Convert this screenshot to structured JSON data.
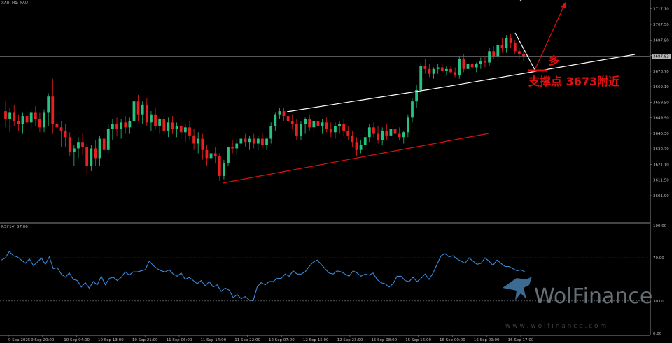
{
  "chart_header": {
    "symbol_info": "XAU, H1:  XAU",
    "rsi_info": "RSI(14) 57.06"
  },
  "chart_data": [
    {
      "type": "candlestick",
      "symbol": "XAU",
      "timeframe": "H1",
      "y_ticks": [
        "3717.10",
        "3707.50",
        "3697.90",
        "3688.30",
        "3678.70",
        "3669.10",
        "3659.50",
        "3649.90",
        "3640.30",
        "3630.70",
        "3621.10",
        "3611.50",
        "3601.90"
      ],
      "ylim": [
        3595,
        3720
      ],
      "current_price_label": "3687.83",
      "current_price": 3687.8,
      "x_ticks": [
        "9 Sep 2025",
        "9 Sep 20:00",
        "10 Sep 04:00",
        "10 Sep 13:00",
        "10 Sep 21:00",
        "11 Sep 06:00",
        "11 Sep 14:00",
        "11 Sep 22:00",
        "12 Sep 07:00",
        "12 Sep 15:00",
        "12 Sep 23:00",
        "15 Sep 08:00",
        "15 Sep 16:00",
        "16 Sep 00:00",
        "16 Sep 09:00",
        "16 Sep 17:00"
      ],
      "bull_color": "#26c281",
      "bear_color": "#e8201f",
      "candles": [
        {
          "o": 3654,
          "h": 3660,
          "l": 3644,
          "c": 3649
        },
        {
          "o": 3649,
          "h": 3656,
          "l": 3641,
          "c": 3653
        },
        {
          "o": 3653,
          "h": 3658,
          "l": 3645,
          "c": 3648
        },
        {
          "o": 3648,
          "h": 3652,
          "l": 3642,
          "c": 3646
        },
        {
          "o": 3646,
          "h": 3653,
          "l": 3640,
          "c": 3651
        },
        {
          "o": 3651,
          "h": 3656,
          "l": 3644,
          "c": 3647
        },
        {
          "o": 3647,
          "h": 3655,
          "l": 3643,
          "c": 3653
        },
        {
          "o": 3653,
          "h": 3657,
          "l": 3645,
          "c": 3649
        },
        {
          "o": 3649,
          "h": 3653,
          "l": 3641,
          "c": 3644
        },
        {
          "o": 3644,
          "h": 3655,
          "l": 3641,
          "c": 3653
        },
        {
          "o": 3653,
          "h": 3665,
          "l": 3645,
          "c": 3663
        },
        {
          "o": 3663,
          "h": 3674,
          "l": 3640,
          "c": 3646
        },
        {
          "o": 3646,
          "h": 3652,
          "l": 3630,
          "c": 3644
        },
        {
          "o": 3644,
          "h": 3648,
          "l": 3632,
          "c": 3642
        },
        {
          "o": 3642,
          "h": 3646,
          "l": 3632,
          "c": 3638
        },
        {
          "o": 3638,
          "h": 3641,
          "l": 3626,
          "c": 3629
        },
        {
          "o": 3629,
          "h": 3633,
          "l": 3620,
          "c": 3631
        },
        {
          "o": 3631,
          "h": 3638,
          "l": 3625,
          "c": 3635
        },
        {
          "o": 3635,
          "h": 3640,
          "l": 3627,
          "c": 3632
        },
        {
          "o": 3632,
          "h": 3634,
          "l": 3615,
          "c": 3620
        },
        {
          "o": 3620,
          "h": 3633,
          "l": 3617,
          "c": 3631
        },
        {
          "o": 3631,
          "h": 3636,
          "l": 3620,
          "c": 3625
        },
        {
          "o": 3625,
          "h": 3639,
          "l": 3620,
          "c": 3637
        },
        {
          "o": 3637,
          "h": 3643,
          "l": 3627,
          "c": 3630
        },
        {
          "o": 3630,
          "h": 3646,
          "l": 3628,
          "c": 3643
        },
        {
          "o": 3643,
          "h": 3649,
          "l": 3636,
          "c": 3646
        },
        {
          "o": 3646,
          "h": 3650,
          "l": 3639,
          "c": 3643
        },
        {
          "o": 3643,
          "h": 3649,
          "l": 3637,
          "c": 3647
        },
        {
          "o": 3647,
          "h": 3651,
          "l": 3640,
          "c": 3644
        },
        {
          "o": 3644,
          "h": 3650,
          "l": 3640,
          "c": 3648
        },
        {
          "o": 3648,
          "h": 3662,
          "l": 3645,
          "c": 3660
        },
        {
          "o": 3660,
          "h": 3664,
          "l": 3648,
          "c": 3652
        },
        {
          "o": 3652,
          "h": 3660,
          "l": 3646,
          "c": 3658
        },
        {
          "o": 3658,
          "h": 3662,
          "l": 3645,
          "c": 3647
        },
        {
          "o": 3647,
          "h": 3654,
          "l": 3642,
          "c": 3652
        },
        {
          "o": 3652,
          "h": 3656,
          "l": 3643,
          "c": 3645
        },
        {
          "o": 3645,
          "h": 3650,
          "l": 3640,
          "c": 3649
        },
        {
          "o": 3649,
          "h": 3652,
          "l": 3639,
          "c": 3642
        },
        {
          "o": 3642,
          "h": 3650,
          "l": 3638,
          "c": 3647
        },
        {
          "o": 3647,
          "h": 3651,
          "l": 3640,
          "c": 3643
        },
        {
          "o": 3643,
          "h": 3647,
          "l": 3638,
          "c": 3645
        },
        {
          "o": 3645,
          "h": 3648,
          "l": 3637,
          "c": 3641
        },
        {
          "o": 3641,
          "h": 3646,
          "l": 3635,
          "c": 3644
        },
        {
          "o": 3644,
          "h": 3648,
          "l": 3636,
          "c": 3639
        },
        {
          "o": 3639,
          "h": 3643,
          "l": 3630,
          "c": 3634
        },
        {
          "o": 3634,
          "h": 3641,
          "l": 3628,
          "c": 3637
        },
        {
          "o": 3637,
          "h": 3640,
          "l": 3624,
          "c": 3630
        },
        {
          "o": 3630,
          "h": 3633,
          "l": 3620,
          "c": 3625
        },
        {
          "o": 3625,
          "h": 3632,
          "l": 3619,
          "c": 3628
        },
        {
          "o": 3628,
          "h": 3632,
          "l": 3622,
          "c": 3626
        },
        {
          "o": 3626,
          "h": 3628,
          "l": 3611,
          "c": 3614
        },
        {
          "o": 3614,
          "h": 3624,
          "l": 3612,
          "c": 3622
        },
        {
          "o": 3622,
          "h": 3632,
          "l": 3620,
          "c": 3632
        },
        {
          "o": 3632,
          "h": 3636,
          "l": 3628,
          "c": 3631
        },
        {
          "o": 3631,
          "h": 3637,
          "l": 3627,
          "c": 3634
        },
        {
          "o": 3634,
          "h": 3638,
          "l": 3630,
          "c": 3637
        },
        {
          "o": 3637,
          "h": 3640,
          "l": 3632,
          "c": 3635
        },
        {
          "o": 3635,
          "h": 3639,
          "l": 3630,
          "c": 3637
        },
        {
          "o": 3637,
          "h": 3640,
          "l": 3631,
          "c": 3634
        },
        {
          "o": 3634,
          "h": 3639,
          "l": 3630,
          "c": 3637
        },
        {
          "o": 3637,
          "h": 3640,
          "l": 3632,
          "c": 3633
        },
        {
          "o": 3633,
          "h": 3638,
          "l": 3630,
          "c": 3637
        },
        {
          "o": 3637,
          "h": 3647,
          "l": 3634,
          "c": 3645
        },
        {
          "o": 3645,
          "h": 3653,
          "l": 3642,
          "c": 3652
        },
        {
          "o": 3652,
          "h": 3656,
          "l": 3649,
          "c": 3654
        },
        {
          "o": 3654,
          "h": 3656,
          "l": 3648,
          "c": 3651
        },
        {
          "o": 3651,
          "h": 3654,
          "l": 3646,
          "c": 3648
        },
        {
          "o": 3648,
          "h": 3652,
          "l": 3643,
          "c": 3646
        },
        {
          "o": 3646,
          "h": 3649,
          "l": 3636,
          "c": 3639
        },
        {
          "o": 3639,
          "h": 3648,
          "l": 3636,
          "c": 3646
        },
        {
          "o": 3646,
          "h": 3650,
          "l": 3640,
          "c": 3649
        },
        {
          "o": 3649,
          "h": 3652,
          "l": 3642,
          "c": 3644
        },
        {
          "o": 3644,
          "h": 3649,
          "l": 3640,
          "c": 3648
        },
        {
          "o": 3648,
          "h": 3651,
          "l": 3643,
          "c": 3645
        },
        {
          "o": 3645,
          "h": 3649,
          "l": 3640,
          "c": 3647
        },
        {
          "o": 3647,
          "h": 3650,
          "l": 3641,
          "c": 3643
        },
        {
          "o": 3643,
          "h": 3647,
          "l": 3638,
          "c": 3641
        },
        {
          "o": 3641,
          "h": 3647,
          "l": 3637,
          "c": 3645
        },
        {
          "o": 3645,
          "h": 3648,
          "l": 3640,
          "c": 3646
        },
        {
          "o": 3646,
          "h": 3649,
          "l": 3639,
          "c": 3642
        },
        {
          "o": 3642,
          "h": 3645,
          "l": 3636,
          "c": 3639
        },
        {
          "o": 3639,
          "h": 3642,
          "l": 3632,
          "c": 3635
        },
        {
          "o": 3635,
          "h": 3638,
          "l": 3626,
          "c": 3630
        },
        {
          "o": 3630,
          "h": 3636,
          "l": 3628,
          "c": 3633
        },
        {
          "o": 3633,
          "h": 3640,
          "l": 3630,
          "c": 3638
        },
        {
          "o": 3638,
          "h": 3646,
          "l": 3635,
          "c": 3644
        },
        {
          "o": 3644,
          "h": 3647,
          "l": 3638,
          "c": 3640
        },
        {
          "o": 3640,
          "h": 3645,
          "l": 3634,
          "c": 3636
        },
        {
          "o": 3636,
          "h": 3644,
          "l": 3633,
          "c": 3642
        },
        {
          "o": 3642,
          "h": 3646,
          "l": 3636,
          "c": 3639
        },
        {
          "o": 3639,
          "h": 3645,
          "l": 3636,
          "c": 3643
        },
        {
          "o": 3643,
          "h": 3646,
          "l": 3638,
          "c": 3640
        },
        {
          "o": 3640,
          "h": 3644,
          "l": 3636,
          "c": 3638
        },
        {
          "o": 3638,
          "h": 3642,
          "l": 3634,
          "c": 3641
        },
        {
          "o": 3641,
          "h": 3652,
          "l": 3638,
          "c": 3650
        },
        {
          "o": 3650,
          "h": 3662,
          "l": 3647,
          "c": 3660
        },
        {
          "o": 3660,
          "h": 3670,
          "l": 3656,
          "c": 3667
        },
        {
          "o": 3667,
          "h": 3684,
          "l": 3664,
          "c": 3682
        },
        {
          "o": 3682,
          "h": 3686,
          "l": 3677,
          "c": 3680
        },
        {
          "o": 3680,
          "h": 3683,
          "l": 3675,
          "c": 3677
        },
        {
          "o": 3677,
          "h": 3681,
          "l": 3674,
          "c": 3680
        },
        {
          "o": 3680,
          "h": 3683,
          "l": 3677,
          "c": 3681
        },
        {
          "o": 3681,
          "h": 3683,
          "l": 3678,
          "c": 3679
        },
        {
          "o": 3679,
          "h": 3682,
          "l": 3676,
          "c": 3680
        },
        {
          "o": 3680,
          "h": 3682,
          "l": 3677,
          "c": 3678
        },
        {
          "o": 3678,
          "h": 3681,
          "l": 3675,
          "c": 3676
        },
        {
          "o": 3676,
          "h": 3688,
          "l": 3674,
          "c": 3686
        },
        {
          "o": 3686,
          "h": 3689,
          "l": 3678,
          "c": 3680
        },
        {
          "o": 3680,
          "h": 3684,
          "l": 3676,
          "c": 3683
        },
        {
          "o": 3683,
          "h": 3686,
          "l": 3679,
          "c": 3681
        },
        {
          "o": 3681,
          "h": 3684,
          "l": 3678,
          "c": 3683
        },
        {
          "o": 3683,
          "h": 3687,
          "l": 3680,
          "c": 3685
        },
        {
          "o": 3685,
          "h": 3688,
          "l": 3681,
          "c": 3684
        },
        {
          "o": 3684,
          "h": 3693,
          "l": 3682,
          "c": 3691
        },
        {
          "o": 3691,
          "h": 3694,
          "l": 3686,
          "c": 3688
        },
        {
          "o": 3688,
          "h": 3697,
          "l": 3685,
          "c": 3695
        },
        {
          "o": 3695,
          "h": 3699,
          "l": 3690,
          "c": 3693
        },
        {
          "o": 3693,
          "h": 3701,
          "l": 3690,
          "c": 3699
        },
        {
          "o": 3699,
          "h": 3702,
          "l": 3693,
          "c": 3696
        },
        {
          "o": 3696,
          "h": 3698,
          "l": 3689,
          "c": 3691
        },
        {
          "o": 3691,
          "h": 3693,
          "l": 3686,
          "c": 3689
        },
        {
          "o": 3689,
          "h": 3691,
          "l": 3685,
          "c": 3688
        }
      ],
      "annotations": {
        "support_text": "支撑点 3673附近",
        "bias_text": "多",
        "support_price_label": "3673",
        "support_price": 3673
      }
    },
    {
      "type": "line",
      "indicator": "RSI",
      "period": 14,
      "current": 57.06,
      "y_ticks": [
        "100.00",
        "70.00",
        "30.00",
        "0.00"
      ],
      "levels": [
        70,
        30
      ],
      "ylim": [
        0,
        100
      ],
      "line_color": "#3b8ad9",
      "values": [
        68,
        70,
        76,
        72,
        71,
        68,
        65,
        69,
        63,
        66,
        70,
        64,
        71,
        60,
        61,
        55,
        52,
        56,
        50,
        49,
        43,
        47,
        42,
        48,
        45,
        53,
        45,
        51,
        52,
        49,
        52,
        57,
        54,
        57,
        57,
        58,
        59,
        67,
        63,
        60,
        58,
        57,
        59,
        55,
        53,
        56,
        50,
        52,
        49,
        46,
        49,
        44,
        48,
        43,
        45,
        39,
        42,
        40,
        33,
        36,
        32,
        34,
        31,
        30,
        43,
        47,
        45,
        48,
        48,
        51,
        51,
        55,
        53,
        58,
        55,
        55,
        57,
        62,
        66,
        68,
        64,
        60,
        56,
        55,
        58,
        57,
        55,
        53,
        58,
        56,
        53,
        55,
        54,
        56,
        50,
        47,
        46,
        43,
        46,
        53,
        53,
        49,
        48,
        52,
        48,
        51,
        55,
        50,
        56,
        64,
        72,
        74,
        71,
        72,
        69,
        67,
        65,
        70,
        67,
        64,
        65,
        70,
        67,
        63,
        68,
        65,
        62,
        62,
        60,
        58,
        59,
        57
      ]
    }
  ],
  "watermark": {
    "brand": "WolFinance",
    "url": "w w w . w o l f i n a n c e . c o m"
  }
}
